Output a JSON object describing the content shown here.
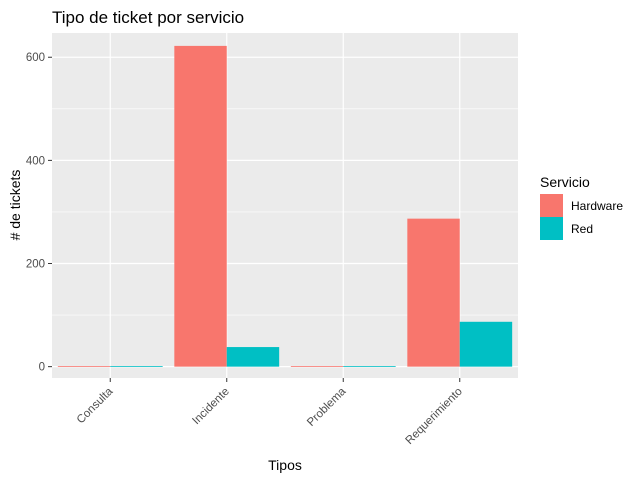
{
  "chart_data": {
    "type": "bar",
    "title": "Tipo de ticket por servicio",
    "xlabel": "Tipos",
    "ylabel": "# de tickets",
    "categories": [
      "Consulta",
      "Incidente",
      "Problema",
      "Requerimiento"
    ],
    "series": [
      {
        "name": "Hardware",
        "values": [
          1,
          622,
          1,
          287
        ]
      },
      {
        "name": "Red",
        "values": [
          1,
          38,
          1,
          87
        ]
      }
    ],
    "colors": [
      "#F8766D",
      "#00BFC4"
    ],
    "ylim": [
      -22,
      647
    ],
    "yticks": [
      0,
      200,
      400,
      600
    ],
    "yminor": [
      100,
      300,
      500
    ],
    "grid": true,
    "legend": {
      "title": "Servicio",
      "position": "right"
    }
  }
}
